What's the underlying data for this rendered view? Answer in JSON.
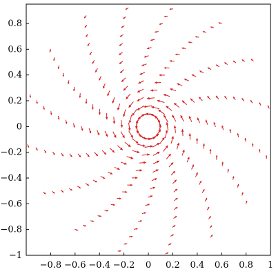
{
  "chart_data": {
    "type": "vector_field",
    "title": "",
    "xlabel": "",
    "ylabel": "",
    "xlim": [
      -1,
      1
    ],
    "ylim": [
      -1,
      0.95
    ],
    "grid": false,
    "x_ticks": [
      -0.8,
      -0.6,
      -0.4,
      -0.2,
      0,
      0.2,
      0.4,
      0.6,
      0.8,
      1
    ],
    "y_ticks": [
      -1,
      -0.8,
      -0.6,
      -0.4,
      -0.2,
      0,
      0.2,
      0.4,
      0.6,
      0.8
    ],
    "x_tick_labels": [
      "−0.8",
      "−0.6",
      "−0.4",
      "−0.2",
      "0",
      "0.2",
      "0.4",
      "0.6",
      "0.8",
      "1"
    ],
    "y_tick_labels": [
      "−1",
      "−0.8",
      "−0.6",
      "−0.4",
      "−0.2",
      "0",
      "0.2",
      "0.4",
      "0.6",
      "0.8"
    ],
    "arrow_color": "#d42020",
    "field": {
      "arms": 16,
      "arm_start_angle_deg": 8,
      "arm_curvature": 0.55,
      "arm_r_min": 0.1,
      "arm_r_max": 1.0,
      "arrows_per_arm": 15,
      "center": [
        0,
        0
      ],
      "rotation": "counterclockwise"
    }
  }
}
